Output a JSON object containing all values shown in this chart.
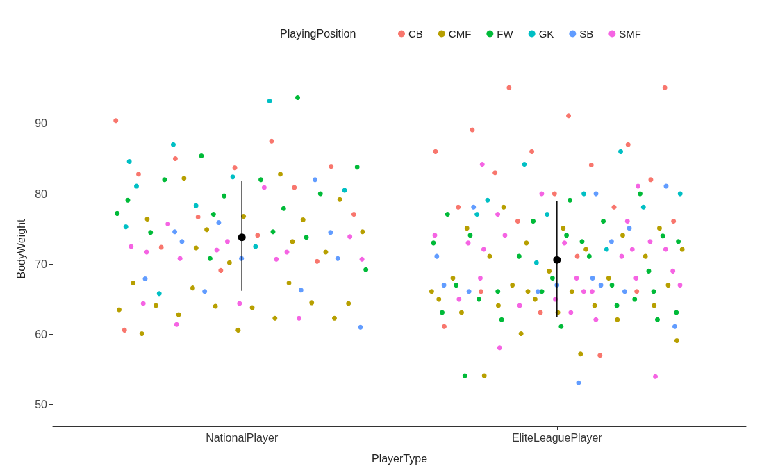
{
  "chart_data": {
    "type": "scatter",
    "xlabel": "PlayerType",
    "ylabel": "BodyWeight",
    "legend_title": "PlayingPosition",
    "legend": "top",
    "grid": false,
    "marker": "circle",
    "categories": [
      "NationalPlayer",
      "EliteLeaguePlayer"
    ],
    "ylim": [
      46.9,
      97.4
    ],
    "yticks": [
      50,
      60,
      70,
      80,
      90
    ],
    "series": [
      {
        "name": "CB",
        "color": "#f8766d",
        "x": [
          "NationalPlayer",
          "NationalPlayer",
          "NationalPlayer",
          "NationalPlayer",
          "NationalPlayer",
          "NationalPlayer",
          "NationalPlayer",
          "NationalPlayer",
          "NationalPlayer",
          "NationalPlayer",
          "NationalPlayer",
          "NationalPlayer",
          "NationalPlayer",
          "NationalPlayer",
          "EliteLeaguePlayer",
          "EliteLeaguePlayer",
          "EliteLeaguePlayer",
          "EliteLeaguePlayer",
          "EliteLeaguePlayer",
          "EliteLeaguePlayer",
          "EliteLeaguePlayer",
          "EliteLeaguePlayer",
          "EliteLeaguePlayer",
          "EliteLeaguePlayer",
          "EliteLeaguePlayer",
          "EliteLeaguePlayer",
          "EliteLeaguePlayer",
          "EliteLeaguePlayer",
          "EliteLeaguePlayer",
          "EliteLeaguePlayer",
          "EliteLeaguePlayer",
          "EliteLeaguePlayer",
          "EliteLeaguePlayer",
          "EliteLeaguePlayer",
          "EliteLeaguePlayer"
        ],
        "values": [
          90.4,
          87.5,
          85.0,
          83.9,
          83.7,
          82.8,
          80.9,
          76.7,
          77.1,
          74.1,
          72.4,
          70.4,
          69.1,
          60.6,
          95.1,
          95.1,
          91.1,
          89.1,
          87.0,
          86.0,
          86.0,
          84.1,
          83.0,
          82.0,
          80.0,
          78.1,
          78.1,
          76.1,
          76.1,
          71.1,
          66.1,
          66.1,
          63.1,
          61.1,
          57.0
        ]
      },
      {
        "name": "CMF",
        "color": "#b79f00",
        "x": [
          "NationalPlayer",
          "NationalPlayer",
          "NationalPlayer",
          "NationalPlayer",
          "NationalPlayer",
          "NationalPlayer",
          "NationalPlayer",
          "NationalPlayer",
          "NationalPlayer",
          "NationalPlayer",
          "NationalPlayer",
          "NationalPlayer",
          "NationalPlayer",
          "NationalPlayer",
          "NationalPlayer",
          "NationalPlayer",
          "NationalPlayer",
          "NationalPlayer",
          "NationalPlayer",
          "NationalPlayer",
          "NationalPlayer",
          "NationalPlayer",
          "NationalPlayer",
          "NationalPlayer",
          "NationalPlayer",
          "NationalPlayer",
          "EliteLeaguePlayer",
          "EliteLeaguePlayer",
          "EliteLeaguePlayer",
          "EliteLeaguePlayer",
          "EliteLeaguePlayer",
          "EliteLeaguePlayer",
          "EliteLeaguePlayer",
          "EliteLeaguePlayer",
          "EliteLeaguePlayer",
          "EliteLeaguePlayer",
          "EliteLeaguePlayer",
          "EliteLeaguePlayer",
          "EliteLeaguePlayer",
          "EliteLeaguePlayer",
          "EliteLeaguePlayer",
          "EliteLeaguePlayer",
          "EliteLeaguePlayer",
          "EliteLeaguePlayer",
          "EliteLeaguePlayer",
          "EliteLeaguePlayer",
          "EliteLeaguePlayer",
          "EliteLeaguePlayer",
          "EliteLeaguePlayer",
          "EliteLeaguePlayer",
          "EliteLeaguePlayer",
          "EliteLeaguePlayer",
          "EliteLeaguePlayer",
          "EliteLeaguePlayer",
          "EliteLeaguePlayer",
          "EliteLeaguePlayer"
        ],
        "values": [
          82.8,
          82.2,
          79.2,
          76.8,
          76.4,
          76.3,
          74.9,
          74.6,
          73.2,
          72.3,
          71.7,
          70.2,
          67.3,
          67.3,
          66.6,
          64.4,
          63.8,
          64.1,
          64.5,
          64.0,
          63.5,
          62.3,
          62.8,
          62.3,
          60.6,
          60.1,
          78.1,
          75.1,
          75.1,
          75.1,
          74.1,
          73.0,
          72.1,
          72.1,
          71.1,
          71.1,
          69.0,
          68.0,
          68.0,
          67.0,
          67.0,
          66.1,
          66.1,
          66.1,
          65.0,
          65.0,
          64.1,
          64.1,
          64.1,
          63.1,
          63.1,
          62.1,
          60.1,
          59.1,
          57.2,
          54.1
        ]
      },
      {
        "name": "FW",
        "color": "#00ba38",
        "x": [
          "NationalPlayer",
          "NationalPlayer",
          "NationalPlayer",
          "NationalPlayer",
          "NationalPlayer",
          "NationalPlayer",
          "NationalPlayer",
          "NationalPlayer",
          "NationalPlayer",
          "NationalPlayer",
          "NationalPlayer",
          "NationalPlayer",
          "NationalPlayer",
          "NationalPlayer",
          "NationalPlayer",
          "NationalPlayer",
          "EliteLeaguePlayer",
          "EliteLeaguePlayer",
          "EliteLeaguePlayer",
          "EliteLeaguePlayer",
          "EliteLeaguePlayer",
          "EliteLeaguePlayer",
          "EliteLeaguePlayer",
          "EliteLeaguePlayer",
          "EliteLeaguePlayer",
          "EliteLeaguePlayer",
          "EliteLeaguePlayer",
          "EliteLeaguePlayer",
          "EliteLeaguePlayer",
          "EliteLeaguePlayer",
          "EliteLeaguePlayer",
          "EliteLeaguePlayer",
          "EliteLeaguePlayer",
          "EliteLeaguePlayer",
          "EliteLeaguePlayer",
          "EliteLeaguePlayer",
          "EliteLeaguePlayer",
          "EliteLeaguePlayer",
          "EliteLeaguePlayer",
          "EliteLeaguePlayer",
          "EliteLeaguePlayer",
          "EliteLeaguePlayer",
          "EliteLeaguePlayer",
          "EliteLeaguePlayer",
          "EliteLeaguePlayer"
        ],
        "values": [
          93.7,
          85.4,
          83.8,
          82.0,
          82.0,
          80.0,
          79.7,
          79.1,
          77.9,
          77.1,
          77.2,
          74.6,
          74.5,
          73.8,
          70.8,
          69.2,
          80.0,
          79.1,
          77.1,
          76.1,
          76.1,
          74.0,
          74.1,
          74.1,
          73.2,
          73.2,
          73.0,
          71.1,
          71.1,
          69.0,
          68.0,
          67.0,
          67.0,
          66.1,
          66.1,
          66.1,
          65.0,
          65.0,
          64.1,
          63.1,
          63.1,
          62.1,
          62.1,
          61.1,
          54.1
        ]
      },
      {
        "name": "GK",
        "color": "#00bfc4",
        "x": [
          "NationalPlayer",
          "NationalPlayer",
          "NationalPlayer",
          "NationalPlayer",
          "NationalPlayer",
          "NationalPlayer",
          "NationalPlayer",
          "NationalPlayer",
          "NationalPlayer",
          "NationalPlayer",
          "EliteLeaguePlayer",
          "EliteLeaguePlayer",
          "EliteLeaguePlayer",
          "EliteLeaguePlayer",
          "EliteLeaguePlayer",
          "EliteLeaguePlayer",
          "EliteLeaguePlayer",
          "EliteLeaguePlayer",
          "EliteLeaguePlayer",
          "EliteLeaguePlayer"
        ],
        "values": [
          93.2,
          87.0,
          84.6,
          82.4,
          81.1,
          80.5,
          78.3,
          75.3,
          72.5,
          65.8,
          86.0,
          84.2,
          80.0,
          80.0,
          79.1,
          78.1,
          77.1,
          77.1,
          72.1,
          70.2
        ]
      },
      {
        "name": "SB",
        "color": "#619cff",
        "x": [
          "NationalPlayer",
          "NationalPlayer",
          "NationalPlayer",
          "NationalPlayer",
          "NationalPlayer",
          "NationalPlayer",
          "NationalPlayer",
          "NationalPlayer",
          "NationalPlayer",
          "NationalPlayer",
          "NationalPlayer",
          "EliteLeaguePlayer",
          "EliteLeaguePlayer",
          "EliteLeaguePlayer",
          "EliteLeaguePlayer",
          "EliteLeaguePlayer",
          "EliteLeaguePlayer",
          "EliteLeaguePlayer",
          "EliteLeaguePlayer",
          "EliteLeaguePlayer",
          "EliteLeaguePlayer",
          "EliteLeaguePlayer",
          "EliteLeaguePlayer",
          "EliteLeaguePlayer",
          "EliteLeaguePlayer",
          "EliteLeaguePlayer"
        ],
        "values": [
          82.0,
          75.9,
          74.6,
          74.5,
          73.2,
          70.8,
          70.8,
          67.9,
          66.3,
          66.1,
          61.0,
          81.1,
          80.0,
          78.1,
          75.1,
          73.2,
          71.1,
          68.0,
          67.0,
          67.0,
          67.0,
          66.1,
          66.1,
          66.1,
          61.1,
          53.1
        ]
      },
      {
        "name": "SMF",
        "color": "#f564e3",
        "x": [
          "NationalPlayer",
          "NationalPlayer",
          "NationalPlayer",
          "NationalPlayer",
          "NationalPlayer",
          "NationalPlayer",
          "NationalPlayer",
          "NationalPlayer",
          "NationalPlayer",
          "NationalPlayer",
          "NationalPlayer",
          "NationalPlayer",
          "NationalPlayer",
          "NationalPlayer",
          "NationalPlayer",
          "EliteLeaguePlayer",
          "EliteLeaguePlayer",
          "EliteLeaguePlayer",
          "EliteLeaguePlayer",
          "EliteLeaguePlayer",
          "EliteLeaguePlayer",
          "EliteLeaguePlayer",
          "EliteLeaguePlayer",
          "EliteLeaguePlayer",
          "EliteLeaguePlayer",
          "EliteLeaguePlayer",
          "EliteLeaguePlayer",
          "EliteLeaguePlayer",
          "EliteLeaguePlayer",
          "EliteLeaguePlayer",
          "EliteLeaguePlayer",
          "EliteLeaguePlayer",
          "EliteLeaguePlayer",
          "EliteLeaguePlayer",
          "EliteLeaguePlayer",
          "EliteLeaguePlayer",
          "EliteLeaguePlayer",
          "EliteLeaguePlayer",
          "EliteLeaguePlayer",
          "EliteLeaguePlayer",
          "EliteLeaguePlayer",
          "EliteLeaguePlayer",
          "EliteLeaguePlayer"
        ],
        "values": [
          80.9,
          75.7,
          73.9,
          73.2,
          72.5,
          71.7,
          72.0,
          71.7,
          70.7,
          70.8,
          70.7,
          64.4,
          64.4,
          62.3,
          61.4,
          84.2,
          81.1,
          80.0,
          77.1,
          76.1,
          74.1,
          74.1,
          73.0,
          73.0,
          73.2,
          72.1,
          72.1,
          72.1,
          71.1,
          69.0,
          68.0,
          68.0,
          68.0,
          67.0,
          66.1,
          66.1,
          65.0,
          65.0,
          64.1,
          63.1,
          62.1,
          58.1,
          54.0
        ]
      },
      {
        "color": "#000000",
        "x": [
          "NationalPlayer",
          "EliteLeaguePlayer"
        ],
        "values": [
          73.8,
          70.6
        ],
        "errors": [
          [
            66.2,
            81.8
          ],
          [
            62.5,
            79.0
          ]
        ]
      }
    ]
  }
}
